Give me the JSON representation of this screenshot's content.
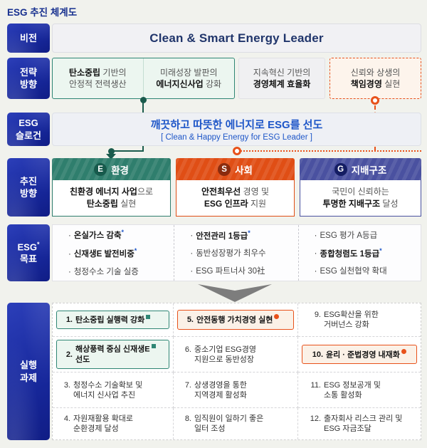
{
  "page_title": "ESG 추진 체계도",
  "marks": {
    "bullet": "·",
    "star": "*"
  },
  "colors": {
    "navy": "#18299E",
    "teal": "#2E8674",
    "orange": "#E8511A",
    "indigo": "#4A51A0",
    "blue": "#1E56C8"
  },
  "vision": {
    "label": "비전",
    "text": "Clean & Smart Energy Leader"
  },
  "strategy": {
    "label1": "전략",
    "label2": "방향",
    "box1": {
      "l1_bold": "탄소중립",
      "l1_rest": " 기반의",
      "l2_bold": "",
      "l2_rest": "안정적 전력생산"
    },
    "box2": {
      "l1_bold": "",
      "l1_rest": "미래성장 발판의",
      "l2_bold": "에너지신사업",
      "l2_rest": " 강화"
    },
    "box3": {
      "l1_bold": "",
      "l1_rest": "지속혁신 기반의",
      "l2_bold": "경영체계 효율화",
      "l2_rest": ""
    },
    "box4": {
      "l1_bold": "",
      "l1_rest": "신뢰와 상생의",
      "l2_bold": "책임경영",
      "l2_rest": " 실현"
    }
  },
  "slogan": {
    "label1": "ESG",
    "label2": "슬로건",
    "main": "깨끗하고 따뜻한 에너지로 ESG를 선도",
    "sub": "[ Clean & Happy Energy for ESG Leader ]"
  },
  "direction": {
    "label1": "추진",
    "label2": "방향",
    "e": {
      "letter": "E",
      "title": "환경",
      "l1_bold": "친환경 에너지 사업",
      "l1_rest": "으로",
      "l2_bold": "탄소중립",
      "l2_rest": " 실현"
    },
    "s": {
      "letter": "S",
      "title": "사회",
      "l1_bold": "안전최우선",
      "l1_rest": " 경영 및",
      "l2_bold": "ESG 인프라",
      "l2_rest": " 지원"
    },
    "g": {
      "letter": "G",
      "title": "지배구조",
      "l1_bold": "",
      "l1_rest": "국민이 신뢰하는",
      "l2_bold": "투명한 지배구조",
      "l2_rest": " 달성"
    }
  },
  "goals": {
    "label1": "ESG",
    "label2": "목표",
    "col1": [
      {
        "text": "온실가스 감축",
        "star": "*"
      },
      {
        "text": "신재생E 발전비중",
        "star": "*"
      },
      {
        "text": "청정수소 기술 실증"
      }
    ],
    "col2": [
      {
        "text": "안전관리 1등급",
        "star": "*"
      },
      {
        "text": "동반성장평가 최우수"
      },
      {
        "text": "ESG 파트너사 30社"
      }
    ],
    "col3": [
      {
        "text": "ESG 평가 A등급"
      },
      {
        "text": "종합청렴도 1등급",
        "star": "*"
      },
      {
        "text": "ESG 실천협약 확대"
      }
    ]
  },
  "tasks": {
    "label1": "실행",
    "label2": "과제",
    "col1": [
      {
        "num": "1.",
        "line1": "탄소중립 실행력 강화",
        "line2": ""
      },
      {
        "num": "2.",
        "line1": "해상풍력 중심 신재생E",
        "line2": "선도"
      },
      {
        "num": "3.",
        "line1": "청정수소 기술확보 및",
        "line2": "에너지 신사업 추진"
      },
      {
        "num": "4.",
        "line1": "자원재활용 확대로",
        "line2": "순환경제 달성"
      }
    ],
    "col2": [
      {
        "num": "5.",
        "line1": "안전동행 가치경영 실현",
        "line2": ""
      },
      {
        "num": "6.",
        "line1": "중소기업 ESG경영",
        "line2": "지원으로 동반성장"
      },
      {
        "num": "7.",
        "line1": "상생경영을 통한",
        "line2": "지역경제 활성화"
      },
      {
        "num": "8.",
        "line1": "임직원이 일하기 좋은",
        "line2": "일터 조성"
      }
    ],
    "col3": [
      {
        "num": "9.",
        "line1": "ESG확산을 위한",
        "line2": "거버넌스 강화"
      },
      {
        "num": "10.",
        "line1": "윤리 · 준법경영 내재화",
        "line2": ""
      },
      {
        "num": "11.",
        "line1": "ESG 정보공개 및",
        "line2": "소통 활성화"
      },
      {
        "num": "12.",
        "line1": "출자회사 리스크 관리 및",
        "line2": "ESG 자금조달"
      }
    ]
  }
}
